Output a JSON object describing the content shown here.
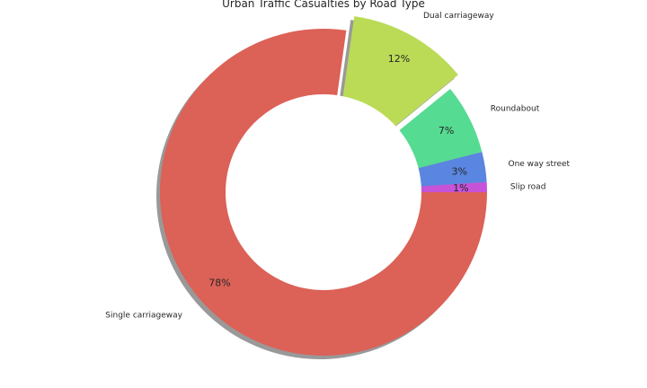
{
  "chart_data": {
    "type": "pie",
    "style": "donut",
    "title": "Urban Traffic Casualties by Road Type",
    "categories": [
      "Slip road",
      "One way street",
      "Roundabout",
      "Dual carriageway",
      "Single carriageway"
    ],
    "values": [
      1,
      3,
      7,
      12,
      78
    ],
    "value_labels": [
      "1%",
      "3%",
      "7%",
      "12%",
      "78%"
    ],
    "colors": [
      "#c653d8",
      "#5a85e0",
      "#56db92",
      "#bbdb57",
      "#dc6157"
    ],
    "exploded": [
      "Dual carriageway"
    ],
    "shadow": true
  }
}
